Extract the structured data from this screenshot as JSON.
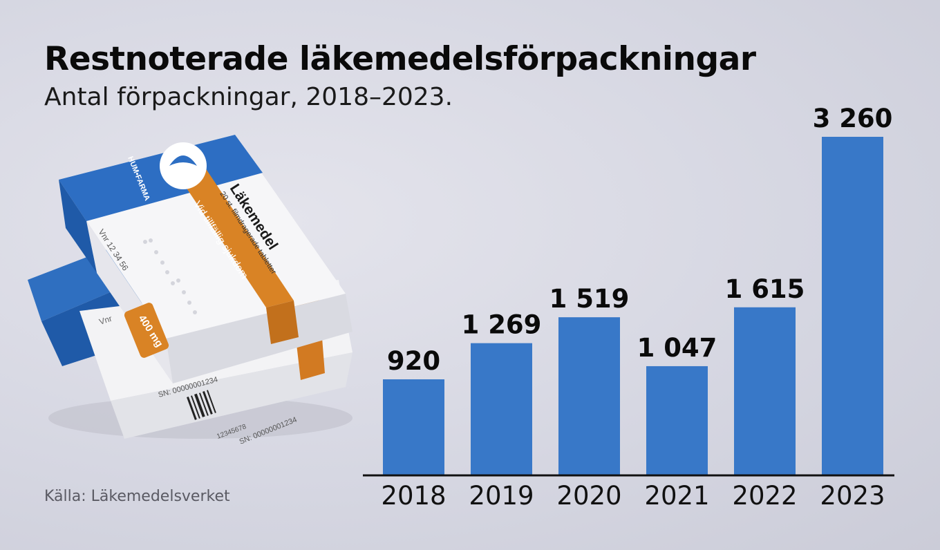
{
  "header": {
    "title": "Restnoterade läkemedelsförpackningar",
    "subtitle": "Antal förpackningar, 2018–2023."
  },
  "footer": {
    "source": "Källa: Läkemedelsverket"
  },
  "illustration": {
    "brand": "HUM•FARMA",
    "product": "Läkemedel",
    "description": "20 st. filmdragerade tabletter",
    "band_text": "Vid tillfällig sjukdom",
    "dose": "400 mg",
    "vnr": "Vnr 12 34 56",
    "vnr_partial": "Vnr",
    "serial": "SN: 00000001234",
    "barcode_number": "12345678"
  },
  "chart_data": {
    "type": "bar",
    "categories": [
      "2018",
      "2019",
      "2020",
      "2021",
      "2022",
      "2023"
    ],
    "values": [
      920,
      1269,
      1519,
      1047,
      1615,
      3260
    ],
    "value_labels": [
      "920",
      "1 269",
      "1 519",
      "1 047",
      "1 615",
      "3 260"
    ],
    "ylim": [
      0,
      3260
    ],
    "grid": false,
    "bar_color": "#3878c8",
    "axis_color": "#111111"
  }
}
